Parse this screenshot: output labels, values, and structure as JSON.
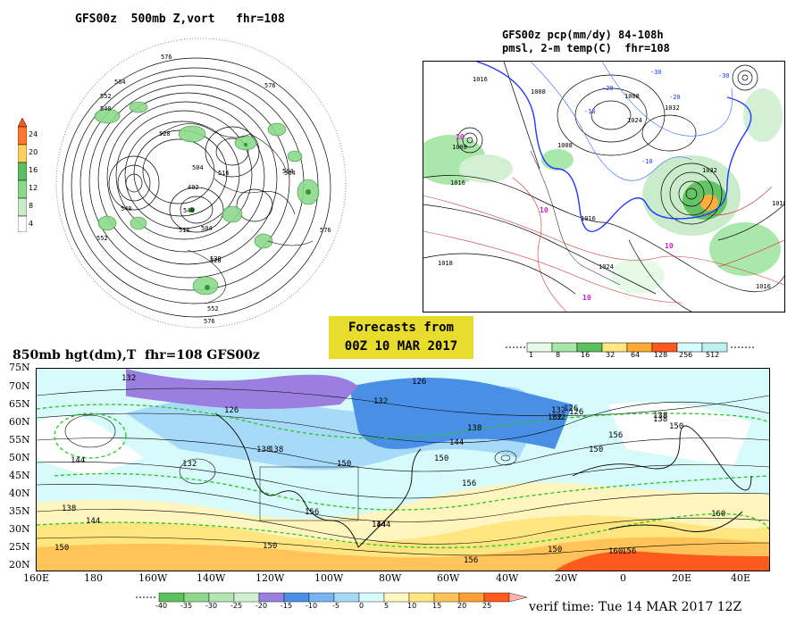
{
  "panel_500mb": {
    "title": "GFS00z  500mb Z,vort   fhr=108",
    "colorbar_ticks": [
      "24",
      "20",
      "16",
      "12",
      "8",
      "4"
    ],
    "contour_labels": [
      "576",
      "564",
      "552",
      "540",
      "528",
      "504",
      "516",
      "492",
      "540",
      "552",
      "576",
      "564",
      "540",
      "528",
      "504",
      "516",
      "576",
      "552",
      "576",
      "564",
      "528"
    ],
    "colors": {
      "vort": "#5cc05c",
      "contour": "#000000"
    }
  },
  "panel_pcp": {
    "title_line1": "GFS00z pcp(mm/dy) 84-108h",
    "title_line2": "pmsl, 2-m temp(C)  fhr=108",
    "pressure_labels": [
      "1008",
      "1008",
      "1016",
      "1018",
      "1024",
      "1032",
      "1008",
      "1008",
      "1016",
      "1016",
      "1024",
      "1016",
      "1018",
      "1032"
    ],
    "temp_labels": [
      "-10",
      "-20",
      "-30",
      "-10",
      "-20",
      "-30",
      "10",
      "10",
      "10",
      "10"
    ],
    "colorbar_ticks": [
      "1",
      "8",
      "16",
      "32",
      "64",
      "128",
      "256",
      "512"
    ],
    "colorbar_colors": [
      "#e6fae6",
      "#a6e6a6",
      "#5cc05c",
      "#ffe680",
      "#ffaa33",
      "#ff5a1e",
      "#d7fafa",
      "#bef0f0"
    ]
  },
  "forecast_box": {
    "line1": "Forecasts from",
    "line2": "00Z 10 MAR 2017"
  },
  "panel_850mb": {
    "title": "850mb hgt(dm),T  fhr=108 GFS00z",
    "lat_labels": [
      "75N",
      "70N",
      "65N",
      "60N",
      "55N",
      "50N",
      "45N",
      "40N",
      "35N",
      "30N",
      "25N",
      "20N"
    ],
    "lon_labels": [
      "160E",
      "180",
      "160W",
      "140W",
      "120W",
      "100W",
      "80W",
      "60W",
      "40W",
      "20W",
      "0",
      "20E",
      "40E"
    ],
    "contour_labels": [
      "132",
      "126",
      "132",
      "126",
      "144",
      "138",
      "132",
      "150",
      "138",
      "132",
      "138",
      "144",
      "150",
      "156",
      "138",
      "144",
      "150",
      "156",
      "150",
      "144",
      "138",
      "132",
      "126",
      "156",
      "150",
      "160",
      "150",
      "156",
      "156",
      "160",
      "144",
      "150",
      "138",
      "132",
      "126"
    ],
    "colorbar_ticks": [
      "-40",
      "-35",
      "-30",
      "-25",
      "-20",
      "-15",
      "-10",
      "-5",
      "0",
      "5",
      "10",
      "15",
      "20",
      "25"
    ],
    "colorbar_colors": [
      "#5cc05c",
      "#8cd98c",
      "#b4e6b4",
      "#d2f0d2",
      "#9a7fe0",
      "#4a8fe6",
      "#7ab4f0",
      "#a6daf8",
      "#d7fafa",
      "#fff5be",
      "#ffe680",
      "#ffc35a",
      "#ffa032",
      "#ff5a1e",
      "#ffb4b4"
    ],
    "verif": "verif time: Tue 14 MAR 2017 12Z"
  }
}
